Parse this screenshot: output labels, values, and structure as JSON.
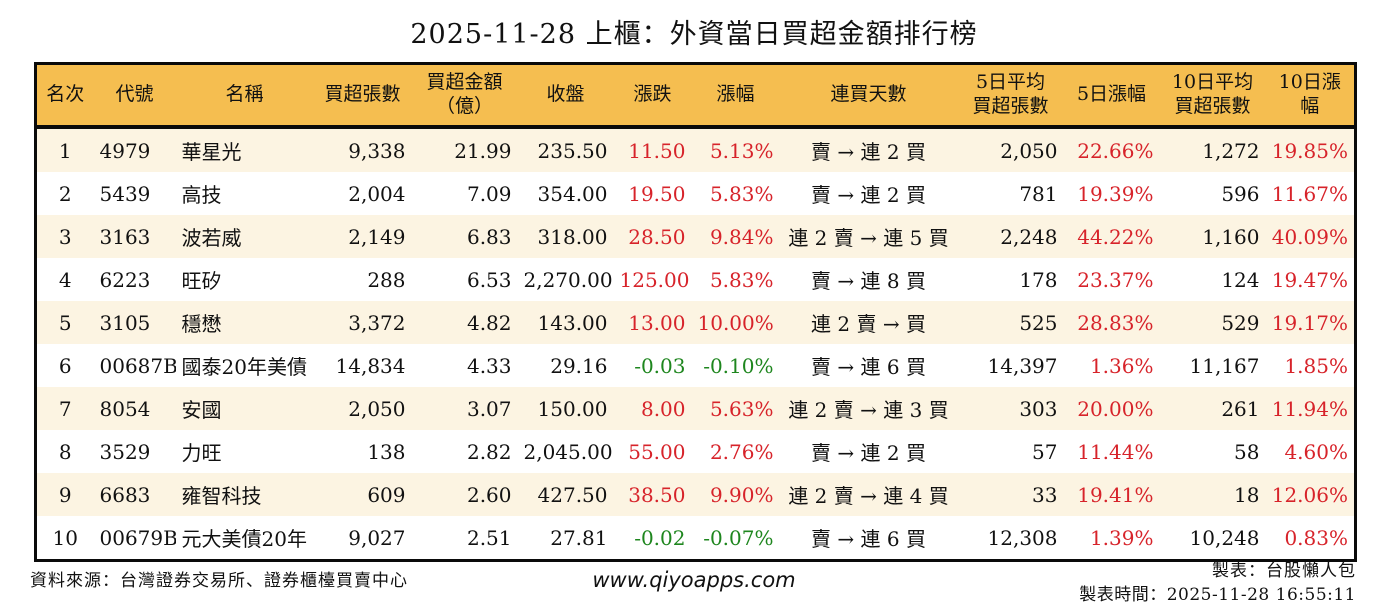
{
  "title": "2025-11-28 上櫃：外資當日買超金額排行榜",
  "colors": {
    "up_red": "#d7232a",
    "down_green": "#1e861e",
    "header_bg": "#f5be50",
    "row_alt_bg": "#fcf4e2",
    "border": "#0a0a0a"
  },
  "table": {
    "columns": [
      {
        "key": "rank",
        "label1": "名次",
        "label2": ""
      },
      {
        "key": "code",
        "label1": "代號",
        "label2": ""
      },
      {
        "key": "name",
        "label1": "名稱",
        "label2": ""
      },
      {
        "key": "vol",
        "label1": "買超張數",
        "label2": ""
      },
      {
        "key": "amount",
        "label1": "買超金額",
        "label2": "（億）"
      },
      {
        "key": "close",
        "label1": "收盤",
        "label2": ""
      },
      {
        "key": "chg",
        "label1": "漲跌",
        "label2": ""
      },
      {
        "key": "pct",
        "label1": "漲幅",
        "label2": ""
      },
      {
        "key": "streak",
        "label1": "連買天數",
        "label2": ""
      },
      {
        "key": "avg5",
        "label1": "5日平均",
        "label2": "買超張數"
      },
      {
        "key": "pct5",
        "label1": "5日漲幅",
        "label2": ""
      },
      {
        "key": "avg10",
        "label1": "10日平均",
        "label2": "買超張數"
      },
      {
        "key": "pct10",
        "label1": "10日漲幅",
        "label2": ""
      }
    ],
    "rows": [
      {
        "rank": "1",
        "code": "4979",
        "name": "華星光",
        "vol": "9,338",
        "amount": "21.99",
        "close": "235.50",
        "chg": "11.50",
        "chg_dir": "up",
        "pct": "5.13%",
        "pct_dir": "up",
        "streak": "賣 → 連 2 買",
        "avg5": "2,050",
        "pct5": "22.66%",
        "pct5_dir": "up",
        "avg10": "1,272",
        "pct10": "19.85%",
        "pct10_dir": "up"
      },
      {
        "rank": "2",
        "code": "5439",
        "name": "高技",
        "vol": "2,004",
        "amount": "7.09",
        "close": "354.00",
        "chg": "19.50",
        "chg_dir": "up",
        "pct": "5.83%",
        "pct_dir": "up",
        "streak": "賣 → 連 2 買",
        "avg5": "781",
        "pct5": "19.39%",
        "pct5_dir": "up",
        "avg10": "596",
        "pct10": "11.67%",
        "pct10_dir": "up"
      },
      {
        "rank": "3",
        "code": "3163",
        "name": "波若威",
        "vol": "2,149",
        "amount": "6.83",
        "close": "318.00",
        "chg": "28.50",
        "chg_dir": "up",
        "pct": "9.84%",
        "pct_dir": "up",
        "streak": "連 2 賣 → 連 5 買",
        "avg5": "2,248",
        "pct5": "44.22%",
        "pct5_dir": "up",
        "avg10": "1,160",
        "pct10": "40.09%",
        "pct10_dir": "up"
      },
      {
        "rank": "4",
        "code": "6223",
        "name": "旺矽",
        "vol": "288",
        "amount": "6.53",
        "close": "2,270.00",
        "chg": "125.00",
        "chg_dir": "up",
        "pct": "5.83%",
        "pct_dir": "up",
        "streak": "賣 → 連 8 買",
        "avg5": "178",
        "pct5": "23.37%",
        "pct5_dir": "up",
        "avg10": "124",
        "pct10": "19.47%",
        "pct10_dir": "up"
      },
      {
        "rank": "5",
        "code": "3105",
        "name": "穩懋",
        "vol": "3,372",
        "amount": "4.82",
        "close": "143.00",
        "chg": "13.00",
        "chg_dir": "up",
        "pct": "10.00%",
        "pct_dir": "up",
        "streak": "連 2 賣 → 買",
        "avg5": "525",
        "pct5": "28.83%",
        "pct5_dir": "up",
        "avg10": "529",
        "pct10": "19.17%",
        "pct10_dir": "up"
      },
      {
        "rank": "6",
        "code": "00687B",
        "name": "國泰20年美債",
        "vol": "14,834",
        "amount": "4.33",
        "close": "29.16",
        "chg": "-0.03",
        "chg_dir": "down",
        "pct": "-0.10%",
        "pct_dir": "down",
        "streak": "賣 → 連 6 買",
        "avg5": "14,397",
        "pct5": "1.36%",
        "pct5_dir": "up",
        "avg10": "11,167",
        "pct10": "1.85%",
        "pct10_dir": "up"
      },
      {
        "rank": "7",
        "code": "8054",
        "name": "安國",
        "vol": "2,050",
        "amount": "3.07",
        "close": "150.00",
        "chg": "8.00",
        "chg_dir": "up",
        "pct": "5.63%",
        "pct_dir": "up",
        "streak": "連 2 賣 → 連 3 買",
        "avg5": "303",
        "pct5": "20.00%",
        "pct5_dir": "up",
        "avg10": "261",
        "pct10": "11.94%",
        "pct10_dir": "up"
      },
      {
        "rank": "8",
        "code": "3529",
        "name": "力旺",
        "vol": "138",
        "amount": "2.82",
        "close": "2,045.00",
        "chg": "55.00",
        "chg_dir": "up",
        "pct": "2.76%",
        "pct_dir": "up",
        "streak": "賣 → 連 2 買",
        "avg5": "57",
        "pct5": "11.44%",
        "pct5_dir": "up",
        "avg10": "58",
        "pct10": "4.60%",
        "pct10_dir": "up"
      },
      {
        "rank": "9",
        "code": "6683",
        "name": "雍智科技",
        "vol": "609",
        "amount": "2.60",
        "close": "427.50",
        "chg": "38.50",
        "chg_dir": "up",
        "pct": "9.90%",
        "pct_dir": "up",
        "streak": "連 2 賣 → 連 4 買",
        "avg5": "33",
        "pct5": "19.41%",
        "pct5_dir": "up",
        "avg10": "18",
        "pct10": "12.06%",
        "pct10_dir": "up"
      },
      {
        "rank": "10",
        "code": "00679B",
        "name": "元大美債20年",
        "vol": "9,027",
        "amount": "2.51",
        "close": "27.81",
        "chg": "-0.02",
        "chg_dir": "down",
        "pct": "-0.07%",
        "pct_dir": "down",
        "streak": "賣 → 連 6 買",
        "avg5": "12,308",
        "pct5": "1.39%",
        "pct5_dir": "up",
        "avg10": "10,248",
        "pct10": "0.83%",
        "pct10_dir": "up"
      }
    ]
  },
  "footer": {
    "source": "資料來源：台灣證券交易所、證券櫃檯買賣中心",
    "website": "www.qiyoapps.com",
    "maker": "製表：台股懶人包",
    "made_time": "製表時間：2025-11-28 16:55:11"
  }
}
